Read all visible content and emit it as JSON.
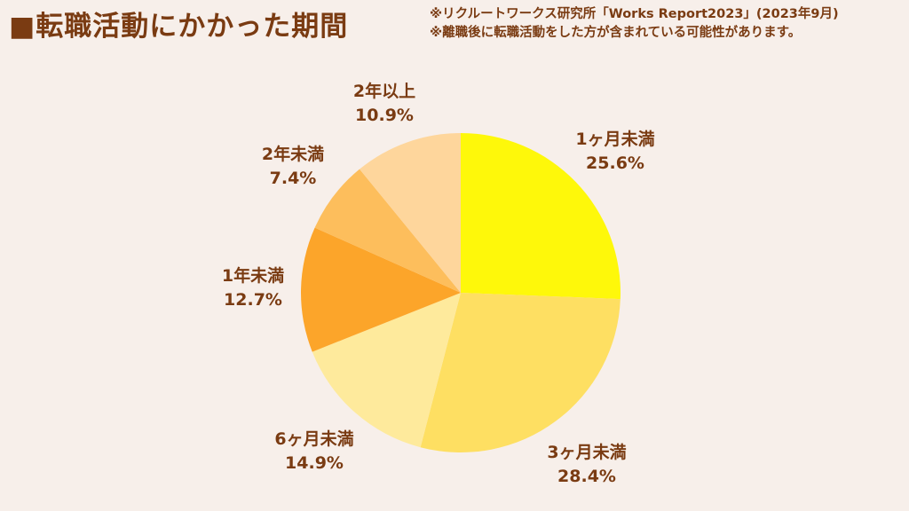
{
  "title": "■転職活動にかかった期間",
  "notes": [
    "※リクルートワークス研究所「Works Report2023」(2023年9月)",
    "※離職後に転職活動をした方が含まれている可能性があります。"
  ],
  "chart_data": {
    "type": "pie",
    "title": "転職活動にかかった期間",
    "start": "12 o'clock",
    "direction": "clockwise",
    "slices": [
      {
        "label": "1ヶ月未満",
        "value": 25.6,
        "value_label": "25.6%",
        "color": "#fef80a"
      },
      {
        "label": "3ヶ月未満",
        "value": 28.4,
        "value_label": "28.4%",
        "color": "#fedf62"
      },
      {
        "label": "6ヶ月未満",
        "value": 14.9,
        "value_label": "14.9%",
        "color": "#feea9c"
      },
      {
        "label": "1年未満",
        "value": 12.7,
        "value_label": "12.7%",
        "color": "#fca52a"
      },
      {
        "label": "2年未満",
        "value": 7.4,
        "value_label": "7.4%",
        "color": "#fdbe5c"
      },
      {
        "label": "2年以上",
        "value": 10.9,
        "value_label": "10.9%",
        "color": "#fed69c"
      }
    ]
  }
}
